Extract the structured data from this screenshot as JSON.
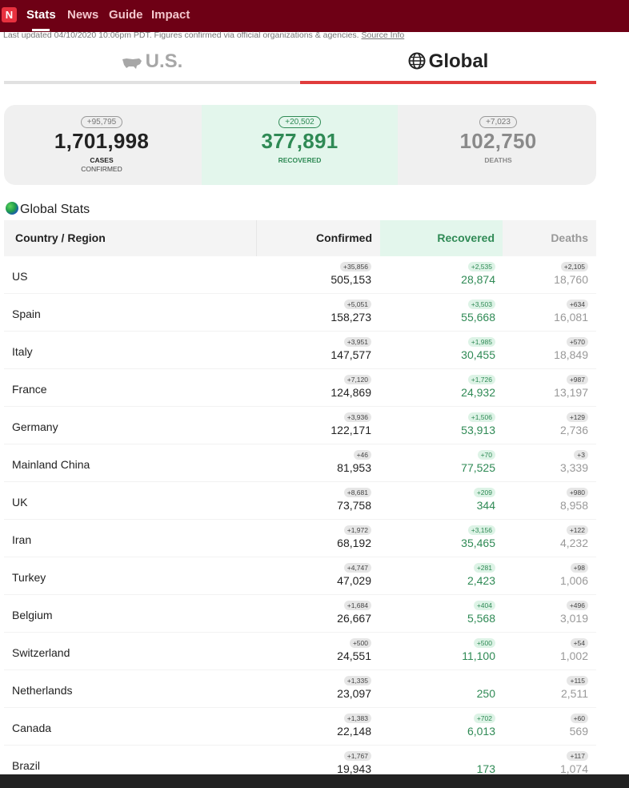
{
  "nav": {
    "logo": "N",
    "items": [
      {
        "label": "Stats",
        "active": true
      },
      {
        "label": "News",
        "active": false
      },
      {
        "label": "Guide",
        "active": false
      },
      {
        "label": "Impact",
        "active": false
      }
    ]
  },
  "updated": {
    "text": "Last updated 04/10/2020 10:06pm PDT. Figures confirmed via official organizations & agencies.",
    "link": "Source Info"
  },
  "tabs": {
    "us": "U.S.",
    "global": "Global"
  },
  "summary": {
    "cases": {
      "delta": "+95,795",
      "value": "1,701,998",
      "label": "CASES",
      "sub": "CONFIRMED"
    },
    "recovered": {
      "delta": "+20,502",
      "value": "377,891",
      "label": "RECOVERED"
    },
    "deaths": {
      "delta": "+7,023",
      "value": "102,750",
      "label": "DEATHS"
    }
  },
  "section_title": "Global Stats",
  "table": {
    "headers": {
      "country": "Country / Region",
      "confirmed": "Confirmed",
      "recovered": "Recovered",
      "deaths": "Deaths"
    },
    "rows": [
      {
        "country": "US",
        "conf_delta": "+35,856",
        "conf": "505,153",
        "rec_delta": "+2,535",
        "rec": "28,874",
        "dth_delta": "+2,105",
        "dth": "18,760"
      },
      {
        "country": "Spain",
        "conf_delta": "+5,051",
        "conf": "158,273",
        "rec_delta": "+3,503",
        "rec": "55,668",
        "dth_delta": "+634",
        "dth": "16,081"
      },
      {
        "country": "Italy",
        "conf_delta": "+3,951",
        "conf": "147,577",
        "rec_delta": "+1,985",
        "rec": "30,455",
        "dth_delta": "+570",
        "dth": "18,849"
      },
      {
        "country": "France",
        "conf_delta": "+7,120",
        "conf": "124,869",
        "rec_delta": "+1,726",
        "rec": "24,932",
        "dth_delta": "+987",
        "dth": "13,197"
      },
      {
        "country": "Germany",
        "conf_delta": "+3,936",
        "conf": "122,171",
        "rec_delta": "+1,506",
        "rec": "53,913",
        "dth_delta": "+129",
        "dth": "2,736"
      },
      {
        "country": "Mainland China",
        "conf_delta": "+46",
        "conf": "81,953",
        "rec_delta": "+70",
        "rec": "77,525",
        "dth_delta": "+3",
        "dth": "3,339"
      },
      {
        "country": "UK",
        "conf_delta": "+8,681",
        "conf": "73,758",
        "rec_delta": "+209",
        "rec": "344",
        "dth_delta": "+980",
        "dth": "8,958"
      },
      {
        "country": "Iran",
        "conf_delta": "+1,972",
        "conf": "68,192",
        "rec_delta": "+3,156",
        "rec": "35,465",
        "dth_delta": "+122",
        "dth": "4,232"
      },
      {
        "country": "Turkey",
        "conf_delta": "+4,747",
        "conf": "47,029",
        "rec_delta": "+281",
        "rec": "2,423",
        "dth_delta": "+98",
        "dth": "1,006"
      },
      {
        "country": "Belgium",
        "conf_delta": "+1,684",
        "conf": "26,667",
        "rec_delta": "+404",
        "rec": "5,568",
        "dth_delta": "+496",
        "dth": "3,019"
      },
      {
        "country": "Switzerland",
        "conf_delta": "+500",
        "conf": "24,551",
        "rec_delta": "+500",
        "rec": "11,100",
        "dth_delta": "+54",
        "dth": "1,002"
      },
      {
        "country": "Netherlands",
        "conf_delta": "+1,335",
        "conf": "23,097",
        "rec_delta": "",
        "rec": "250",
        "dth_delta": "+115",
        "dth": "2,511"
      },
      {
        "country": "Canada",
        "conf_delta": "+1,383",
        "conf": "22,148",
        "rec_delta": "+702",
        "rec": "6,013",
        "dth_delta": "+60",
        "dth": "569"
      },
      {
        "country": "Brazil",
        "conf_delta": "+1,767",
        "conf": "19,943",
        "rec_delta": "",
        "rec": "173",
        "dth_delta": "+117",
        "dth": "1,074"
      }
    ]
  }
}
